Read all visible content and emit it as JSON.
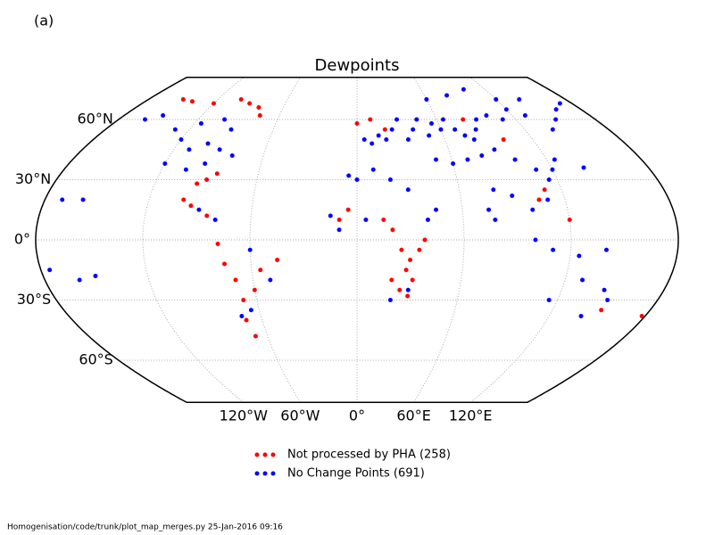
{
  "map": {
    "panel_label": "(a)",
    "title": "Dewpoints",
    "lat_labels": [
      {
        "value": 60,
        "label": "60°N"
      },
      {
        "value": 30,
        "label": "30°N"
      },
      {
        "value": 0,
        "label": "0°"
      },
      {
        "value": -30,
        "label": "30°S"
      },
      {
        "value": -60,
        "label": "60°S"
      }
    ],
    "lon_labels": [
      {
        "value": -120,
        "label": "120°W"
      },
      {
        "value": -60,
        "label": "60°W"
      },
      {
        "value": 0,
        "label": "0°"
      },
      {
        "value": 60,
        "label": "60°E"
      },
      {
        "value": 120,
        "label": "120°E"
      }
    ],
    "series": [
      {
        "name": "Not processed by PHA (258)",
        "color": "#ff0000",
        "points": [
          [
            -150,
            70
          ],
          [
            -140,
            69
          ],
          [
            -120,
            68
          ],
          [
            -100,
            70
          ],
          [
            -90,
            68
          ],
          [
            -80,
            66
          ],
          [
            -75,
            62
          ],
          [
            -85,
            33
          ],
          [
            -90,
            30
          ],
          [
            -95,
            28
          ],
          [
            -100,
            20
          ],
          [
            -95,
            17
          ],
          [
            -85,
            12
          ],
          [
            -78,
            -2
          ],
          [
            -75,
            -12
          ],
          [
            -70,
            -20
          ],
          [
            -68,
            -30
          ],
          [
            -70,
            -40
          ],
          [
            -68,
            -48
          ],
          [
            -60,
            -25
          ],
          [
            -55,
            -15
          ],
          [
            -45,
            -10
          ],
          [
            15,
            10
          ],
          [
            20,
            5
          ],
          [
            25,
            -5
          ],
          [
            30,
            -10
          ],
          [
            28,
            -15
          ],
          [
            32,
            -20
          ],
          [
            35,
            -5
          ],
          [
            38,
            0
          ],
          [
            25,
            -25
          ],
          [
            30,
            -28
          ],
          [
            20,
            -20
          ],
          [
            -5,
            15
          ],
          [
            -10,
            10
          ],
          [
            0,
            58
          ],
          [
            10,
            60
          ],
          [
            20,
            55
          ],
          [
            80,
            60
          ],
          [
            100,
            50
          ],
          [
            110,
            25
          ],
          [
            120,
            10
          ],
          [
            150,
            -35
          ],
          [
            178,
            -38
          ],
          [
            105,
            20
          ]
        ]
      },
      {
        "name": "No Change Points (691)",
        "color": "#0000ff",
        "points": [
          [
            5,
            50
          ],
          [
            10,
            48
          ],
          [
            15,
            52
          ],
          [
            20,
            50
          ],
          [
            25,
            55
          ],
          [
            30,
            60
          ],
          [
            35,
            50
          ],
          [
            40,
            55
          ],
          [
            45,
            60
          ],
          [
            50,
            52
          ],
          [
            55,
            58
          ],
          [
            60,
            55
          ],
          [
            65,
            60
          ],
          [
            70,
            55
          ],
          [
            75,
            52
          ],
          [
            80,
            50
          ],
          [
            85,
            55
          ],
          [
            90,
            60
          ],
          [
            100,
            62
          ],
          [
            110,
            60
          ],
          [
            120,
            65
          ],
          [
            130,
            62
          ],
          [
            140,
            55
          ],
          [
            150,
            60
          ],
          [
            160,
            65
          ],
          [
            170,
            68
          ],
          [
            60,
            70
          ],
          [
            80,
            72
          ],
          [
            100,
            75
          ],
          [
            120,
            70
          ],
          [
            140,
            70
          ],
          [
            50,
            40
          ],
          [
            60,
            38
          ],
          [
            70,
            40
          ],
          [
            80,
            42
          ],
          [
            90,
            45
          ],
          [
            100,
            40
          ],
          [
            110,
            35
          ],
          [
            115,
            30
          ],
          [
            120,
            35
          ],
          [
            125,
            40
          ],
          [
            140,
            36
          ],
          [
            110,
            20
          ],
          [
            100,
            15
          ],
          [
            90,
            22
          ],
          [
            80,
            25
          ],
          [
            75,
            15
          ],
          [
            78,
            10
          ],
          [
            0,
            30
          ],
          [
            10,
            35
          ],
          [
            -5,
            32
          ],
          [
            20,
            30
          ],
          [
            30,
            25
          ],
          [
            45,
            15
          ],
          [
            40,
            10
          ],
          [
            5,
            10
          ],
          [
            -15,
            12
          ],
          [
            -10,
            5
          ],
          [
            20,
            -30
          ],
          [
            30,
            -25
          ],
          [
            -120,
            50
          ],
          [
            -110,
            45
          ],
          [
            -100,
            48
          ],
          [
            -90,
            45
          ],
          [
            -80,
            42
          ],
          [
            -120,
            38
          ],
          [
            -105,
            35
          ],
          [
            -95,
            38
          ],
          [
            -115,
            58
          ],
          [
            -100,
            60
          ],
          [
            -90,
            55
          ],
          [
            -150,
            62
          ],
          [
            -160,
            60
          ],
          [
            -130,
            55
          ],
          [
            -90,
            15
          ],
          [
            -80,
            10
          ],
          [
            -60,
            -5
          ],
          [
            -50,
            -20
          ],
          [
            -65,
            -35
          ],
          [
            -72,
            -38
          ],
          [
            115,
            -30
          ],
          [
            130,
            -20
          ],
          [
            145,
            -25
          ],
          [
            150,
            -30
          ],
          [
            140,
            -38
          ],
          [
            100,
            0
          ],
          [
            110,
            -5
          ],
          [
            125,
            -8
          ],
          [
            140,
            -5
          ],
          [
            -170,
            20
          ],
          [
            -150,
            -18
          ],
          [
            -160,
            -20
          ],
          [
            -175,
            -15
          ],
          [
            -158,
            20
          ]
        ]
      }
    ],
    "footer": "Homogenisation/code/trunk/plot_map_merges.py   25-Jan-2016 09:16"
  }
}
